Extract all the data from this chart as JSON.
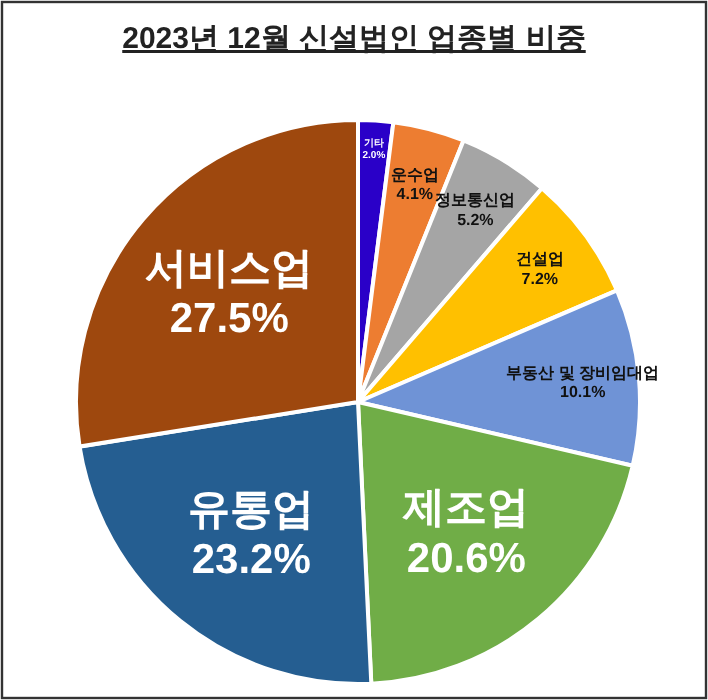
{
  "chart_data": {
    "type": "pie",
    "title": "2023년 12월 신설법인 업종별 비중",
    "categories": [
      "기타",
      "운수업",
      "정보통신업",
      "건설업",
      "부동산 및 장비임대업",
      "제조업",
      "유통업",
      "서비스업"
    ],
    "values": [
      2.0,
      4.1,
      5.2,
      7.2,
      10.1,
      20.6,
      23.2,
      27.5
    ],
    "value_labels": [
      "2.0%",
      "4.1%",
      "5.2%",
      "7.2%",
      "10.1%",
      "20.6%",
      "23.2%",
      "27.5%"
    ],
    "colors": [
      "#2a00c8",
      "#ed7d31",
      "#a5a5a5",
      "#ffc000",
      "#6f93d6",
      "#70ad47",
      "#255e91",
      "#9e480e"
    ]
  }
}
